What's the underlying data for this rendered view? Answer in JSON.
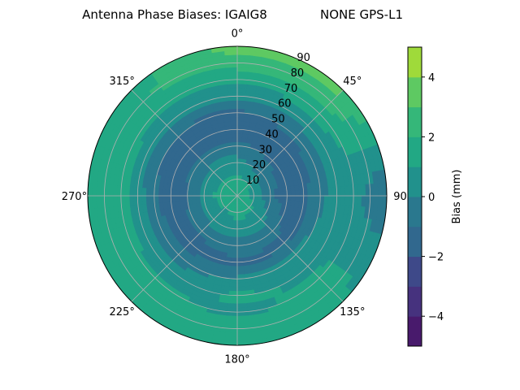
{
  "chart_data": {
    "type": "heatmap",
    "subtype": "polar-filled-contour",
    "title": "Antenna Phase Biases: IGAIG8",
    "subtitle": "NONE GPS-L1",
    "azimuth_direction": "clockwise, 0° at top",
    "theta_tick_labels": [
      "0°",
      "45°",
      "90",
      "135°",
      "180°",
      "225°",
      "270°",
      "315°"
    ],
    "theta_ticks": [
      0,
      45,
      90,
      135,
      180,
      225,
      270,
      315
    ],
    "r_ticks": [
      10,
      20,
      30,
      40,
      50,
      60,
      70,
      80,
      90
    ],
    "r_tick_labels": [
      "10",
      "20",
      "30",
      "40",
      "50",
      "60",
      "70",
      "80",
      "90"
    ],
    "r_range": [
      0,
      90
    ],
    "grid": true,
    "azimuths": [
      0,
      45,
      90,
      135,
      180,
      225,
      270,
      315
    ],
    "zeniths": [
      0,
      10,
      20,
      30,
      40,
      50,
      60,
      70,
      80,
      90
    ],
    "values": [
      [
        1.5,
        1.2,
        0.5,
        -0.8,
        -1.5,
        -1.2,
        0.2,
        1.2,
        2.5,
        3.5
      ],
      [
        1.5,
        1.0,
        -0.5,
        -1.2,
        -1.5,
        -0.8,
        0.5,
        1.5,
        2.8,
        3.2
      ],
      [
        1.5,
        0.8,
        -0.8,
        -1.5,
        -1.2,
        -0.5,
        0.8,
        0.5,
        -0.5,
        -0.8
      ],
      [
        1.5,
        1.2,
        0.5,
        -0.8,
        -1.2,
        0.5,
        0.8,
        1.2,
        1.5,
        1.2
      ],
      [
        1.5,
        1.2,
        0.8,
        -0.5,
        -1.2,
        0.2,
        1.2,
        0.8,
        1.5,
        1.5
      ],
      [
        1.5,
        1.0,
        0.5,
        -0.8,
        -1.5,
        -0.5,
        0.5,
        1.2,
        1.5,
        1.5
      ],
      [
        1.5,
        1.5,
        0.2,
        -1.0,
        -1.5,
        -0.8,
        0.5,
        1.5,
        1.5,
        1.5
      ],
      [
        1.5,
        1.2,
        0.5,
        -0.8,
        -1.5,
        -1.2,
        0.5,
        1.2,
        2.0,
        1.5
      ]
    ],
    "colorbar": {
      "label": "Bias (mm)",
      "range": [
        -5,
        5
      ],
      "levels": [
        -5,
        -4,
        -3,
        -2,
        -1,
        0,
        1,
        2,
        3,
        4,
        5
      ],
      "tick_values": [
        4,
        2,
        0,
        -2,
        -4
      ],
      "tick_labels": [
        "4",
        "2",
        "0",
        "−2",
        "−4"
      ],
      "colors": [
        "#481a6c",
        "#46327e",
        "#3e4989",
        "#31688e",
        "#2a788e",
        "#21918c",
        "#22a884",
        "#35b779",
        "#5ec962",
        "#9fda3a",
        "#e1e21c"
      ]
    }
  }
}
